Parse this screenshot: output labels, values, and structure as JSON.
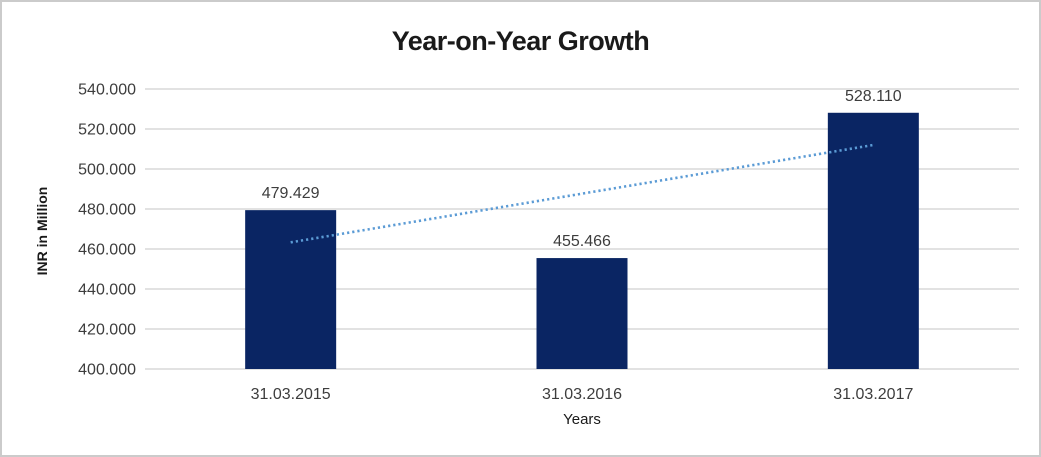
{
  "chart_data": {
    "type": "bar",
    "title": "Year-on-Year Growth",
    "categories": [
      "31.03.2015",
      "31.03.2016",
      "31.03.2017"
    ],
    "values": [
      479.429,
      455.466,
      528.11
    ],
    "data_labels": [
      "479.429",
      "455.466",
      "528.110"
    ],
    "xlabel": "Years",
    "ylabel": "INR in Million",
    "ylim": [
      400,
      540
    ],
    "ytick_step": 20,
    "ytick_labels": [
      "400.000",
      "420.000",
      "440.000",
      "460.000",
      "480.000",
      "500.000",
      "520.000",
      "540.000"
    ],
    "legend": "none",
    "grid": "horizontal",
    "trendline": {
      "kind": "linear",
      "style": "dotted"
    },
    "colors": {
      "bar": "#0A2563",
      "trendline": "#5B9BD5",
      "gridline": "#D9D9D9",
      "label_text": "#3D3D3D",
      "title_text": "#1A1A1A",
      "frame_border": "#CBCBCB",
      "background": "#FFFFFF"
    }
  }
}
